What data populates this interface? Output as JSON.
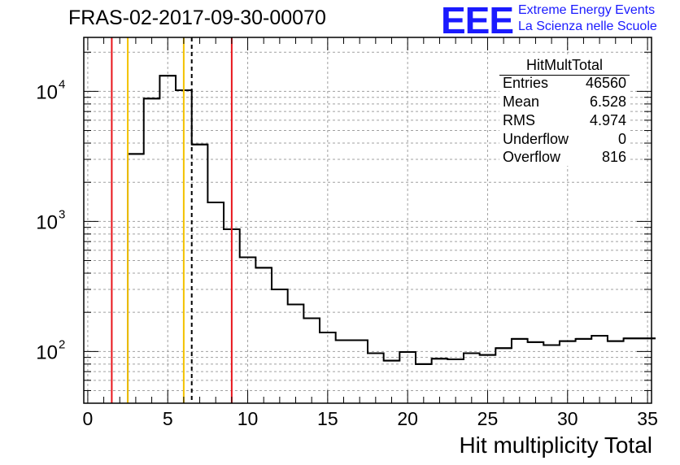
{
  "header": {
    "run_title": "FRAS-02-2017-09-30-00070",
    "logo_text": "EEE",
    "logo_line1": "Extreme Energy Events",
    "logo_line2": "La Scienza nelle Scuole"
  },
  "stats": {
    "title": "HitMultTotal",
    "rows": [
      {
        "label": "Entries",
        "value": "46560"
      },
      {
        "label": "Mean",
        "value": "6.528"
      },
      {
        "label": "RMS",
        "value": "4.974"
      },
      {
        "label": "Underflow",
        "value": "0"
      },
      {
        "label": "Overflow",
        "value": "816"
      }
    ]
  },
  "chart_data": {
    "type": "bar",
    "style": "step-histogram",
    "title": "",
    "xlabel": "Hit multiplicity Total",
    "ylabel": "",
    "xlim": [
      -0.25,
      35.25
    ],
    "ylim": [
      40,
      26000
    ],
    "y_scale": "log",
    "grid": true,
    "bin_width": 1,
    "bin_starts": [
      2.5,
      3.5,
      4.5,
      5.5,
      6.5,
      7.5,
      8.5,
      9.5,
      10.5,
      11.5,
      12.5,
      13.5,
      14.5,
      15.5,
      16.5,
      17.5,
      18.5,
      19.5,
      20.5,
      21.5,
      22.5,
      23.5,
      24.5,
      25.5,
      26.5,
      27.5,
      28.5,
      29.5,
      30.5,
      31.5,
      32.5,
      33.5,
      34.5
    ],
    "values": [
      3300,
      8800,
      13200,
      10200,
      3900,
      1400,
      870,
      530,
      440,
      300,
      230,
      180,
      140,
      122,
      122,
      97,
      85,
      99,
      80,
      88,
      87,
      97,
      94,
      106,
      125,
      118,
      112,
      120,
      125,
      132,
      120,
      126,
      126
    ],
    "x_ticks": [
      0,
      5,
      10,
      15,
      20,
      25,
      30,
      35
    ],
    "x_tick_labels": [
      "0",
      "5",
      "10",
      "15",
      "20",
      "25",
      "30",
      "35"
    ],
    "y_ticks": [
      100,
      1000,
      10000
    ],
    "y_tick_labels": [
      {
        "base": "10",
        "exp": "2"
      },
      {
        "base": "10",
        "exp": "3"
      },
      {
        "base": "10",
        "exp": "4"
      }
    ],
    "markers": [
      {
        "x": 1.5,
        "color": "#e8151b",
        "style": "solid"
      },
      {
        "x": 2.5,
        "color": "#f3c200",
        "style": "solid"
      },
      {
        "x": 6.0,
        "color": "#f3c200",
        "style": "solid"
      },
      {
        "x": 6.5,
        "color": "#000000",
        "style": "dashed"
      },
      {
        "x": 9.0,
        "color": "#e8151b",
        "style": "solid"
      }
    ],
    "line_color": "#000000",
    "grid_color": "#a0a0a0"
  }
}
